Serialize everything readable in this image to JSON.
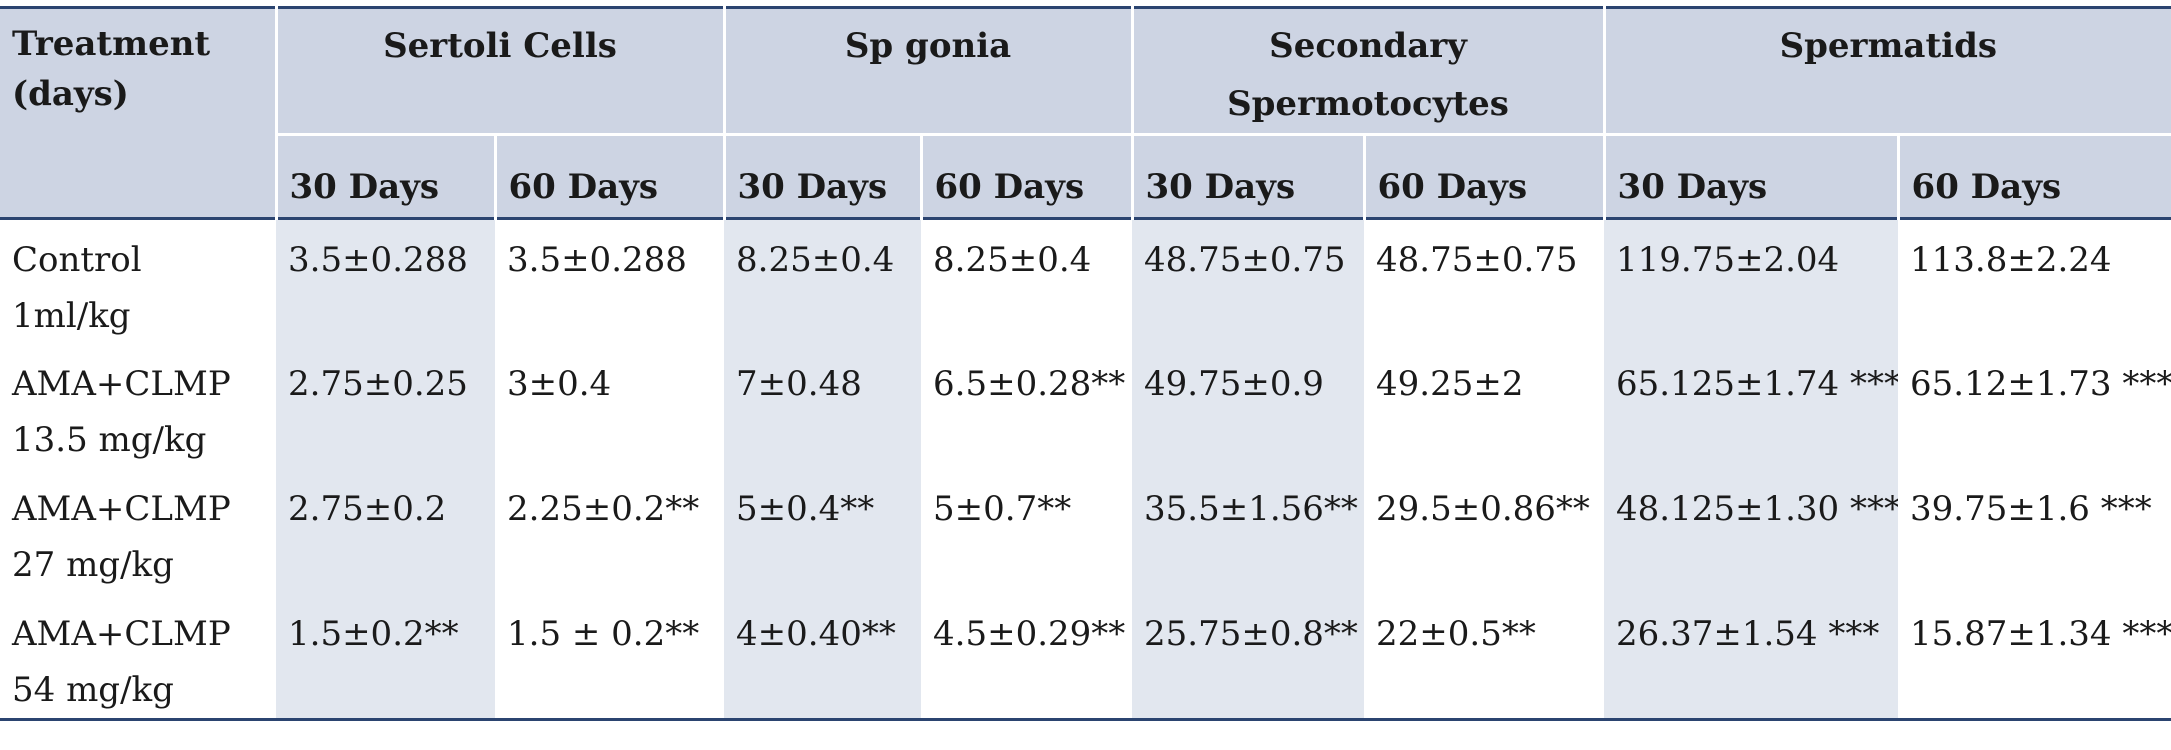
{
  "header": {
    "treatment_label": [
      "Treatment",
      "(days)"
    ],
    "groups": [
      {
        "label": [
          "Sertoli Cells"
        ]
      },
      {
        "label": [
          "Sp gonia"
        ]
      },
      {
        "label": [
          "Secondary",
          "Spermotocytes"
        ]
      },
      {
        "label": [
          "Spermatids"
        ]
      }
    ],
    "subcolumns": [
      "30 Days",
      "60 Days",
      "30 Days",
      "60 Days",
      "30 Days",
      "60 Days",
      "30 Days",
      "60 Days"
    ]
  },
  "rows": [
    {
      "treatment": [
        "Control",
        "1ml/kg"
      ],
      "values": [
        "3.5±0.288",
        "3.5±0.288",
        "8.25±0.4",
        "8.25±0.4",
        "48.75±0.75",
        "48.75±0.75",
        "119.75±2.04",
        "113.8±2.24"
      ]
    },
    {
      "treatment": [
        "AMA+CLMP",
        "13.5 mg/kg"
      ],
      "values": [
        "2.75±0.25",
        "3±0.4",
        "7±0.48",
        "6.5±0.28**",
        "49.75±0.9",
        "49.25±2",
        "65.125±1.74 ***",
        "65.12±1.73 ***"
      ]
    },
    {
      "treatment": [
        "AMA+CLMP",
        "27 mg/kg"
      ],
      "values": [
        "2.75±0.2",
        "2.25±0.2**",
        "5±0.4**",
        "5±0.7**",
        "35.5±1.56**",
        "29.5±0.86**",
        "48.125±1.30 ***",
        "39.75±1.6 ***"
      ]
    },
    {
      "treatment": [
        "AMA+CLMP",
        "54 mg/kg"
      ],
      "values": [
        "1.5±0.2**",
        "1.5 ± 0.2**",
        "4±0.40**",
        "4.5±0.29**",
        "25.75±0.8**",
        "22±0.5**",
        "26.37±1.54 ***",
        "15.87±1.34 ***"
      ]
    }
  ]
}
